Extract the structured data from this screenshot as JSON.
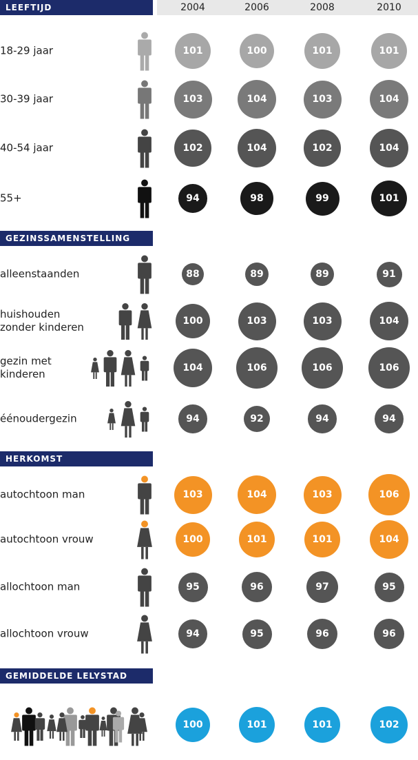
{
  "header": {
    "years": [
      "2004",
      "2006",
      "2008",
      "2010"
    ]
  },
  "sections": [
    {
      "title": "LEEFTIJD",
      "rows": [
        {
          "label": [
            "18-29 jaar"
          ],
          "color": "#a7a7a7",
          "values": [
            101,
            100,
            101,
            101
          ]
        },
        {
          "label": [
            "30-39 jaar"
          ],
          "color": "#7a7a7a",
          "values": [
            103,
            104,
            103,
            104
          ]
        },
        {
          "label": [
            "40-54 jaar"
          ],
          "color": "#555555",
          "values": [
            102,
            104,
            102,
            104
          ]
        },
        {
          "label": [
            "55+"
          ],
          "color": "#1a1a1a",
          "values": [
            94,
            98,
            99,
            101
          ]
        }
      ]
    },
    {
      "title": "GEZINSSAMENSTELLING",
      "rows": [
        {
          "label": [
            "alleenstaanden"
          ],
          "color": "#555555",
          "values": [
            88,
            89,
            89,
            91
          ]
        },
        {
          "label": [
            "huishouden",
            "zonder kinderen"
          ],
          "color": "#555555",
          "values": [
            100,
            103,
            103,
            104
          ]
        },
        {
          "label": [
            "gezin met",
            "kinderen"
          ],
          "color": "#555555",
          "values": [
            104,
            106,
            106,
            106
          ]
        },
        {
          "label": [
            "éénoudergezin"
          ],
          "color": "#555555",
          "values": [
            94,
            92,
            94,
            94
          ]
        }
      ]
    },
    {
      "title": "HERKOMST",
      "rows": [
        {
          "label": [
            "autochtoon man"
          ],
          "color": "#f39325",
          "values": [
            103,
            104,
            103,
            106
          ]
        },
        {
          "label": [
            "autochtoon vrouw"
          ],
          "color": "#f39325",
          "values": [
            100,
            101,
            101,
            104
          ]
        },
        {
          "label": [
            "allochtoon man"
          ],
          "color": "#555555",
          "values": [
            95,
            96,
            97,
            95
          ]
        },
        {
          "label": [
            "allochtoon vrouw"
          ],
          "color": "#555555",
          "values": [
            94,
            95,
            96,
            96
          ]
        }
      ]
    },
    {
      "title": "GEMIDDELDE LELYSTAD",
      "rows": [
        {
          "label": [],
          "color": "#1ba1dc",
          "values": [
            100,
            101,
            101,
            102
          ]
        }
      ]
    }
  ]
}
